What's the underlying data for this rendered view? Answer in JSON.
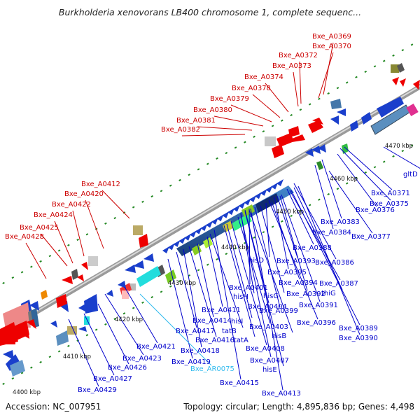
{
  "title": "Burkholderia xenovorans LB400 chromosome 1, complete sequenc...",
  "footer": {
    "accession": "Accession: NC_007951",
    "summary": "Topology: circular; Length: 4,895,836 bp; Genes: 4,498"
  },
  "colors": {
    "red_label": "#cc0000",
    "blue_label": "#0000cc",
    "cyan_label": "#33bbee",
    "backbone": "#777777",
    "ruler_tick": "#228822"
  },
  "kbp_labels": [
    "4470 kbp",
    "4460 kbp",
    "4450 kbp",
    "4440 kbp",
    "4430 kbp",
    "4420 kbp",
    "4410 kbp",
    "4400 kbp"
  ],
  "labels_red": [
    "Bxe_A0369",
    "Bxe_A0370",
    "Bxe_A0372",
    "Bxe_A0373",
    "Bxe_A0374",
    "Bxe_A0378",
    "Bxe_A0379",
    "Bxe_A0380",
    "Bxe_A0381",
    "Bxe_A0382",
    "Bxe_A0412",
    "Bxe_A0420",
    "Bxe_A0422",
    "Bxe_A0424",
    "Bxe_A0425",
    "Bxe_A0428"
  ],
  "labels_blue": [
    "gltD",
    "Bxe_A0371",
    "Bxe_A0375",
    "Bxe_A0376",
    "Bxe_A0383",
    "Bxe_A0384",
    "Bxe_A0377",
    "Bxe_A0388",
    "Bxe_A0386",
    "Bxe_A0393",
    "hisD",
    "Bxe_A0395",
    "Bxe_A0387",
    "Bxe_A0401",
    "Bxe_A0394",
    "thiG",
    "hisH",
    "Bxe_A0404",
    "hisG",
    "Bxe_A0392",
    "Bxe_A0391",
    "Bxe_A0411",
    "Bxe_A0399",
    "Bxe_A0414",
    "hisI",
    "Bxe_A0396",
    "Bxe_A0417",
    "tatB",
    "Bxe_A0403",
    "Bxe_A0389",
    "Bxe_A0416",
    "tatA",
    "hisB",
    "Bxe_A0390",
    "Bxe_A0421",
    "Bxe_A0418",
    "Bxe_A0408",
    "Bxe_A0423",
    "Bxe_A0419",
    "Bxe_A0407",
    "Bxe_A0426",
    "hisE",
    "Bxe_A0427",
    "Bxe_A0415",
    "Bxe_A0429",
    "Bxe_A0413"
  ],
  "labels_cyan": [
    "Bxe_AR0075"
  ]
}
